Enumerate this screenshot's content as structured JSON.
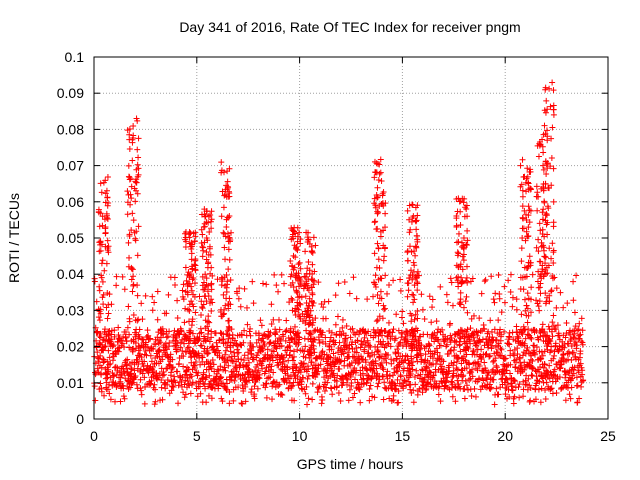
{
  "chart_data": {
    "type": "scatter",
    "title": "Day 341 of 2016, Rate Of TEC Index for receiver pngm",
    "xlabel": "GPS time / hours",
    "ylabel": "ROTI / TECUs",
    "xlim": [
      0,
      25
    ],
    "ylim": [
      0,
      0.1
    ],
    "x_ticks": [
      0,
      5,
      10,
      15,
      20,
      25
    ],
    "x_tick_labels": [
      "0",
      "5",
      "10",
      "15",
      "20",
      "25"
    ],
    "y_ticks": [
      0,
      0.01,
      0.02,
      0.03,
      0.04,
      0.05,
      0.06,
      0.07,
      0.08,
      0.09,
      0.1
    ],
    "y_tick_labels": [
      "0",
      "0.01",
      "0.02",
      "0.03",
      "0.04",
      "0.05",
      "0.06",
      "0.07",
      "0.08",
      "0.09",
      "0.1"
    ],
    "grid": true,
    "marker": "+",
    "color": "#ff0000",
    "series": [
      {
        "name": "ROTI",
        "x_range": [
          0,
          23.8
        ],
        "baseline_band": [
          0.008,
          0.025
        ],
        "typical_max": 0.04,
        "peaks": [
          {
            "x": 0.5,
            "y": 0.067
          },
          {
            "x": 1.9,
            "y": 0.084
          },
          {
            "x": 4.7,
            "y": 0.052
          },
          {
            "x": 5.5,
            "y": 0.058
          },
          {
            "x": 6.4,
            "y": 0.071
          },
          {
            "x": 9.8,
            "y": 0.053
          },
          {
            "x": 10.5,
            "y": 0.052
          },
          {
            "x": 13.9,
            "y": 0.072
          },
          {
            "x": 15.5,
            "y": 0.06
          },
          {
            "x": 17.9,
            "y": 0.061
          },
          {
            "x": 21.0,
            "y": 0.072
          },
          {
            "x": 21.8,
            "y": 0.078
          },
          {
            "x": 22.1,
            "y": 0.093
          }
        ]
      }
    ]
  }
}
